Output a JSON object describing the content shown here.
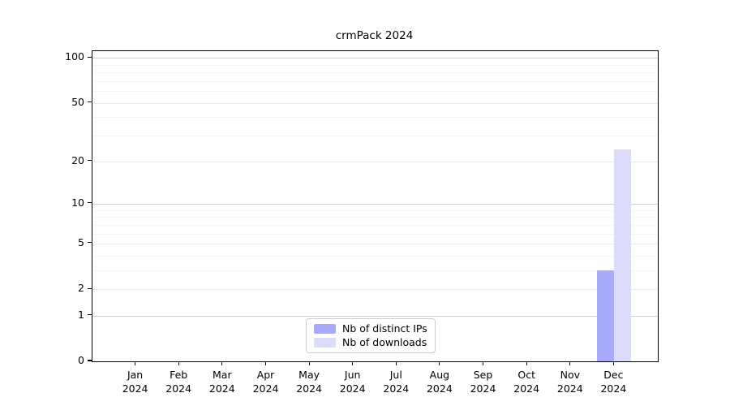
{
  "chart_data": {
    "type": "bar",
    "title": "crmPack 2024",
    "categories": [
      "Jan",
      "Feb",
      "Mar",
      "Apr",
      "May",
      "Jun",
      "Jul",
      "Aug",
      "Sep",
      "Oct",
      "Nov",
      "Dec"
    ],
    "category_sublabel": "2024",
    "series": [
      {
        "name": "Nb of distinct IPs",
        "color": "#aaaafa",
        "values": [
          0,
          0,
          0,
          0,
          0,
          0,
          0,
          0,
          0,
          0,
          0,
          3
        ]
      },
      {
        "name": "Nb of downloads",
        "color": "#dcdcfa",
        "values": [
          0,
          0,
          0,
          0,
          0,
          0,
          0,
          0,
          0,
          0,
          0,
          24
        ]
      }
    ],
    "xlabel": "",
    "ylabel": "",
    "y_scale": "log10(1+x)",
    "ylim": [
      0,
      111
    ],
    "y_ticks": [
      0,
      1,
      2,
      5,
      10,
      20,
      50,
      100
    ],
    "y_major_gridlines": [
      1,
      10,
      100
    ],
    "y_mid_gridlines": [
      2,
      5,
      20,
      50
    ],
    "y_minor_gridlines": [
      3,
      4,
      6,
      7,
      8,
      9,
      30,
      40,
      60,
      70,
      80,
      90
    ],
    "grid": "horizontal",
    "legend_position": "bottom-center"
  }
}
